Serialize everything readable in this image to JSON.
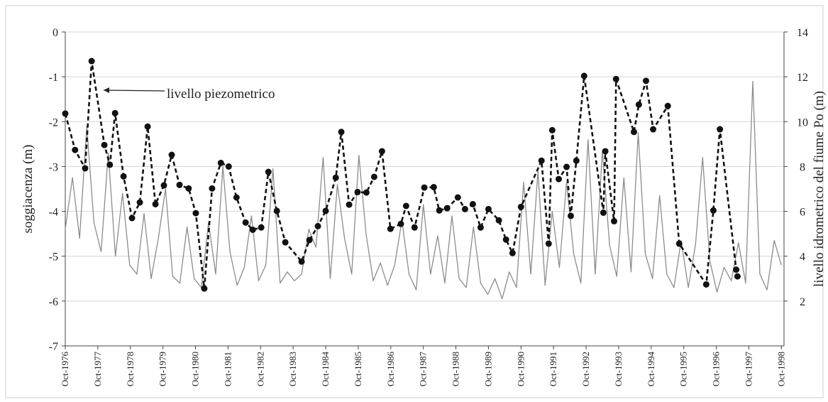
{
  "chart_data": {
    "type": "line",
    "annotation": "livello piezometrico",
    "ylabel": "soggiacenza (m)",
    "y2label": "livello idrometrico del fiume Po (m)",
    "xlim": [
      1976.75,
      1998.83
    ],
    "ylim": [
      -7,
      0
    ],
    "yticks": [
      0,
      -1,
      -2,
      -3,
      -4,
      -5,
      -6,
      -7
    ],
    "y2lim": [
      0,
      14
    ],
    "y2ticks": [
      2,
      4,
      6,
      8,
      10,
      12,
      14
    ],
    "grid": true,
    "xticks": [
      {
        "value": 1976.75,
        "label": "Oct-1976"
      },
      {
        "value": 1977.75,
        "label": "Oct-1977"
      },
      {
        "value": 1978.75,
        "label": "Oct-1978"
      },
      {
        "value": 1979.75,
        "label": "Oct-1979"
      },
      {
        "value": 1980.75,
        "label": "Oct-1980"
      },
      {
        "value": 1981.75,
        "label": "Oct-1981"
      },
      {
        "value": 1982.75,
        "label": "Oct-1982"
      },
      {
        "value": 1983.75,
        "label": "Oct-1983"
      },
      {
        "value": 1984.75,
        "label": "Oct-1984"
      },
      {
        "value": 1985.75,
        "label": "Oct-1985"
      },
      {
        "value": 1986.75,
        "label": "Oct-1986"
      },
      {
        "value": 1987.75,
        "label": "Oct-1987"
      },
      {
        "value": 1988.75,
        "label": "Oct-1988"
      },
      {
        "value": 1989.75,
        "label": "Oct-1989"
      },
      {
        "value": 1990.75,
        "label": "Oct-1990"
      },
      {
        "value": 1991.75,
        "label": "Oct-1991"
      },
      {
        "value": 1992.75,
        "label": "Oct-1992"
      },
      {
        "value": 1993.75,
        "label": "Oct-1993"
      },
      {
        "value": 1994.75,
        "label": "Oct-1994"
      },
      {
        "value": 1995.75,
        "label": "Oct-1995"
      },
      {
        "value": 1996.75,
        "label": "Oct-1996"
      },
      {
        "value": 1997.75,
        "label": "Oct-1997"
      },
      {
        "value": 1998.75,
        "label": "Oct-1998"
      }
    ],
    "series": [
      {
        "color": "#8c8c8c",
        "axis": "y2",
        "x": [
          1976.75,
          1976.97,
          1977.19,
          1977.41,
          1977.63,
          1977.85,
          1978.07,
          1978.29,
          1978.51,
          1978.73,
          1978.95,
          1979.17,
          1979.39,
          1979.61,
          1979.83,
          1980.05,
          1980.27,
          1980.49,
          1980.71,
          1980.93,
          1981.15,
          1981.37,
          1981.59,
          1981.81,
          1982.03,
          1982.25,
          1982.47,
          1982.69,
          1982.91,
          1983.13,
          1983.35,
          1983.57,
          1983.79,
          1984.01,
          1984.23,
          1984.45,
          1984.67,
          1984.89,
          1985.11,
          1985.33,
          1985.55,
          1985.77,
          1985.99,
          1986.21,
          1986.43,
          1986.65,
          1986.87,
          1987.09,
          1987.31,
          1987.53,
          1987.75,
          1987.97,
          1988.19,
          1988.41,
          1988.63,
          1988.85,
          1989.07,
          1989.29,
          1989.51,
          1989.73,
          1989.95,
          1990.17,
          1990.39,
          1990.61,
          1990.83,
          1991.05,
          1991.27,
          1991.49,
          1991.71,
          1991.93,
          1992.15,
          1992.37,
          1992.59,
          1992.81,
          1993.03,
          1993.25,
          1993.47,
          1993.69,
          1993.91,
          1994.13,
          1994.35,
          1994.57,
          1994.79,
          1995.01,
          1995.23,
          1995.45,
          1995.67,
          1995.89,
          1996.11,
          1996.33,
          1996.55,
          1996.77,
          1996.99,
          1997.21,
          1997.43,
          1997.65,
          1997.87,
          1998.09,
          1998.31,
          1998.53,
          1998.75
        ],
        "values": [
          5.2,
          7.5,
          4.8,
          9.8,
          5.5,
          4.2,
          8.6,
          4.0,
          6.8,
          3.6,
          3.2,
          5.9,
          3.0,
          4.8,
          7.0,
          3.1,
          2.8,
          5.3,
          3.0,
          2.6,
          5.5,
          3.2,
          8.0,
          4.2,
          2.7,
          3.5,
          5.8,
          2.9,
          3.6,
          7.9,
          2.8,
          3.3,
          2.9,
          3.2,
          5.2,
          4.4,
          8.4,
          3.0,
          7.2,
          4.8,
          3.2,
          8.5,
          5.0,
          2.9,
          3.7,
          2.7,
          3.6,
          5.6,
          3.2,
          2.5,
          6.3,
          3.2,
          4.9,
          2.8,
          5.8,
          3.0,
          2.6,
          5.3,
          2.8,
          2.3,
          3.0,
          2.1,
          3.3,
          2.6,
          7.3,
          3.2,
          7.8,
          2.7,
          6.0,
          3.5,
          7.3,
          4.1,
          2.8,
          9.2,
          3.2,
          8.7,
          4.5,
          3.1,
          7.5,
          3.3,
          9.5,
          4.1,
          3.0,
          6.7,
          3.2,
          2.6,
          4.7,
          2.6,
          4.5,
          8.4,
          3.8,
          2.4,
          3.5,
          2.9,
          4.6,
          2.8,
          11.8,
          3.2,
          2.5,
          4.7,
          3.6
        ]
      },
      {
        "color": "#111111",
        "dashed": true,
        "markers": true,
        "x": [
          1976.75,
          1977.05,
          1977.36,
          1977.56,
          1977.95,
          1978.12,
          1978.28,
          1978.54,
          1978.8,
          1979.04,
          1979.28,
          1979.52,
          1979.78,
          1980.02,
          1980.26,
          1980.54,
          1980.76,
          1981.02,
          1981.26,
          1981.53,
          1981.77,
          1982.01,
          1982.29,
          1982.51,
          1982.77,
          1982.99,
          1983.25,
          1983.51,
          1984.01,
          1984.25,
          1984.51,
          1984.75,
          1985.06,
          1985.23,
          1985.47,
          1985.73,
          1986.0,
          1986.24,
          1986.48,
          1986.74,
          1987.06,
          1987.22,
          1987.48,
          1987.78,
          1988.07,
          1988.24,
          1988.48,
          1988.81,
          1989.03,
          1989.27,
          1989.51,
          1989.75,
          1990.07,
          1990.29,
          1990.49,
          1990.75,
          1991.38,
          1991.6,
          1991.71,
          1991.91,
          1992.15,
          1992.28,
          1992.45,
          1992.69,
          1993.28,
          1993.34,
          1993.61,
          1993.67,
          1994.22,
          1994.37,
          1994.59,
          1994.81,
          1995.26,
          1995.61,
          1996.44,
          1996.66,
          1996.86,
          1997.36,
          1997.4
        ],
        "values": [
          -1.82,
          -2.63,
          -3.04,
          -0.65,
          -2.52,
          -2.96,
          -1.81,
          -3.22,
          -4.15,
          -3.8,
          -2.11,
          -3.84,
          -3.42,
          -2.74,
          -3.41,
          -3.49,
          -4.04,
          -5.72,
          -3.49,
          -2.92,
          -3.0,
          -3.69,
          -4.25,
          -4.41,
          -4.36,
          -3.12,
          -3.99,
          -4.69,
          -5.12,
          -4.64,
          -4.33,
          -3.99,
          -3.25,
          -2.23,
          -3.85,
          -3.57,
          -3.58,
          -3.23,
          -2.66,
          -4.39,
          -4.28,
          -3.88,
          -4.36,
          -3.47,
          -3.46,
          -3.98,
          -3.93,
          -3.69,
          -3.95,
          -3.84,
          -4.36,
          -3.95,
          -4.2,
          -4.63,
          -4.93,
          -3.9,
          -2.87,
          -4.72,
          -2.19,
          -3.28,
          -3.01,
          -4.1,
          -2.87,
          -0.98,
          -4.03,
          -2.66,
          -4.22,
          -1.05,
          -2.23,
          -1.62,
          -1.09,
          -2.17,
          -1.65,
          -4.72,
          -5.63,
          -3.98,
          -2.17,
          -5.3,
          -5.45
        ]
      }
    ]
  }
}
